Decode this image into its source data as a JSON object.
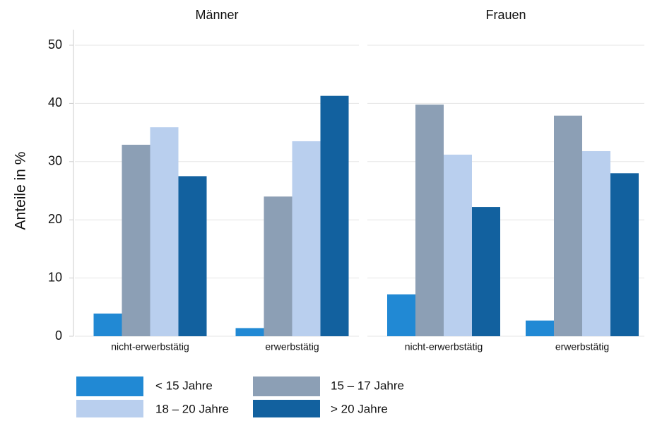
{
  "chart_data": {
    "type": "bar",
    "ylabel": "Anteile in %",
    "ylim": [
      0,
      50
    ],
    "yticks": [
      0,
      10,
      20,
      30,
      40,
      50
    ],
    "grid": true,
    "series": [
      {
        "name": "< 15 Jahre",
        "color": "#2189d4"
      },
      {
        "name": "15 – 17 Jahre",
        "color": "#8c9fb5"
      },
      {
        "name": "18 – 20 Jahre",
        "color": "#b9cfee"
      },
      {
        "name": "> 20 Jahre",
        "color": "#12619f"
      }
    ],
    "panels": [
      {
        "title": "Männer",
        "categories": [
          "nicht-erwerbstätig",
          "erwerbstätig"
        ],
        "values": [
          [
            3.9,
            1.4
          ],
          [
            32.9,
            24.0
          ],
          [
            35.9,
            33.5
          ],
          [
            27.5,
            41.3
          ]
        ]
      },
      {
        "title": "Frauen",
        "categories": [
          "nicht-erwerbstätig",
          "erwerbstätig"
        ],
        "values": [
          [
            7.2,
            2.7
          ],
          [
            39.8,
            37.9
          ],
          [
            31.2,
            31.8
          ],
          [
            22.2,
            28.0
          ]
        ]
      }
    ]
  }
}
